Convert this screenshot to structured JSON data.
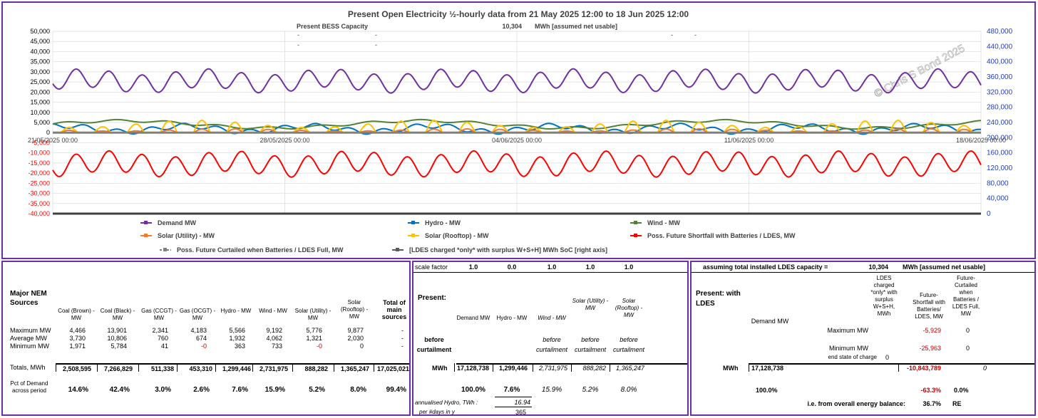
{
  "chart_data": {
    "type": "line",
    "title": "Present Open Electricity ½-hourly data from 21 May 2025 12:00  to 18 Jun 2025 12:00",
    "annotations": {
      "bess_label": "Present BESS Capacity",
      "bess_value": "10,304",
      "bess_unit": "MWh [assumed net usable]",
      "dash": "-",
      "watermark": "© Chris S Bond  2025"
    },
    "left_axis": {
      "min": -40000,
      "max": 50000,
      "step": 5000,
      "ticks": [
        "50,000",
        "45,000",
        "40,000",
        "35,000",
        "30,000",
        "25,000",
        "20,000",
        "15,000",
        "10,000",
        "5,000",
        "0",
        "-5,000",
        "-10,000",
        "-15,000",
        "-20,000",
        "-25,000",
        "-30,000",
        "-35,000",
        "-40,000"
      ]
    },
    "right_axis": {
      "min": 0,
      "max": 480000,
      "step": 40000,
      "ticks": [
        "480,000",
        "440,000",
        "400,000",
        "360,000",
        "320,000",
        "280,000",
        "240,000",
        "200,000",
        "160,000",
        "120,000",
        "80,000",
        "40,000",
        "0"
      ]
    },
    "x_ticks": [
      "21/05/2025 00:00",
      "28/05/2025 00:00",
      "04/06/2025 00:00",
      "11/06/2025 00:00",
      "18/06/2025 00:00"
    ],
    "x_range_days": [
      0,
      28
    ],
    "grid": true,
    "legend_position": "bottom",
    "series": [
      {
        "name": "Demand MW",
        "color": "#7030a0",
        "base": 25500,
        "amplitude": 4500,
        "period_days": 1,
        "phase": 0.55
      },
      {
        "name": "Hydro - MW",
        "color": "#0070c0",
        "base": 1900,
        "amplitude": 1200,
        "period_days": 1,
        "phase": 0.3
      },
      {
        "name": "Wind - MW",
        "color": "#548235",
        "base": 4060,
        "amplitude": 1800,
        "period_days": 9,
        "phase": 0.1
      },
      {
        "name": "Solar (Utility) - MW",
        "color": "#ed7d31",
        "base": 1320,
        "amplitude": 1800,
        "period_days": 1,
        "phase": 0.0
      },
      {
        "name": "Solar (Rooftop) - MW",
        "color": "#ffc000",
        "base": 2030,
        "amplitude": 6000,
        "period_days": 1,
        "phase": 0.0
      },
      {
        "name": "Poss. Future Shortfall with Batteries / LDES, MW",
        "color": "#ff0000",
        "base": -15500,
        "amplitude": 5000,
        "period_days": 1,
        "phase": 0.55
      },
      {
        "name": "Poss. Future Curtailed when Batteries / LDES Full, MW",
        "color": "#808080",
        "base": 0,
        "amplitude": 0
      },
      {
        "name": "[LDES charged *only* with surplus W+S+H]  MWh SoC [right axis]",
        "color": "#595959",
        "base": 0,
        "amplitude": 0
      }
    ]
  },
  "sources_table": {
    "title": "Major NEM Sources",
    "columns": [
      "Coal (Brown) - MW",
      "Coal (Black) - MW",
      "Gas (CCGT) - MW",
      "Gas (OCGT) - MW",
      "Hydro - MW",
      "Wind - MW",
      "Solar (Utility) - MW",
      "Solar (Rooftop) - MW",
      "Total of main sources"
    ],
    "rows": [
      {
        "label": "Maximum MW",
        "values": [
          "4,466",
          "13,901",
          "2,341",
          "4,183",
          "5,566",
          "9,192",
          "5,776",
          "9,877",
          "-"
        ]
      },
      {
        "label": "Average MW",
        "values": [
          "3,730",
          "10,806",
          "760",
          "674",
          "1,932",
          "4,062",
          "1,321",
          "2,030",
          "-"
        ]
      },
      {
        "label": "Minimum MW",
        "values": [
          "1,971",
          "5,784",
          "41",
          "-0",
          "363",
          "733",
          "-0",
          "0",
          "-"
        ]
      }
    ],
    "totals_label": "Totals, MWh",
    "totals": [
      "2,508,595",
      "7,266,829",
      "511,338",
      "453,310",
      "1,299,446",
      "2,731,975",
      "888,282",
      "1,365,247",
      "17,025,021"
    ],
    "pct_label": "Pct of Demand across period",
    "pct": [
      "14.6%",
      "42.4%",
      "3.0%",
      "2.6%",
      "7.6%",
      "15.9%",
      "5.2%",
      "8.0%",
      "99.4%"
    ]
  },
  "present_table": {
    "scale_label": "scale factor",
    "scale": [
      "1.0",
      "0.0",
      "1.0",
      "1.0",
      "1.0"
    ],
    "title": "Present:",
    "columns": [
      "Demand MW",
      "Hydro - MW",
      "Wind - MW",
      "Solar (Utility) - MW",
      "Solar (Rooftop) - MW"
    ],
    "before_curtailment_label": "before curtailment",
    "before_curtailment": "before curtailment",
    "mwh_label": "MWh",
    "mwh": [
      "17,128,738",
      "1,299,446",
      "2,731,975",
      "888,282",
      "1,365,247"
    ],
    "pct": [
      "100.0%",
      "7.6%",
      "15.9%",
      "5.2%",
      "8.0%"
    ],
    "annualised_label": "annualised Hydro, TWh :",
    "annualised": "16.94",
    "per_days_label": "per #days in y",
    "per_days": "365"
  },
  "ldes_table": {
    "assume_label": "assuming total installed LDES capacity =",
    "capacity": "10,304",
    "capacity_unit": "MWh [assumed net usable]",
    "title": "Present: with LDES",
    "columns": [
      "Demand MW",
      "LDES charged *only* with surplus W+S+H, MWh",
      "Future-Shortfall with Batteries/ LDES, MW",
      "Future-Curtailed when Batteries / LDES Full, MW"
    ],
    "max_label": "Maximum MW",
    "max": [
      "-5,929",
      "0"
    ],
    "min_label": "Minimum MW",
    "min": [
      "-25,963",
      "0"
    ],
    "end_state_label": "end state of charge",
    "end_state": "0",
    "mwh_label": "MWh",
    "mwh_demand": "17,128,738",
    "mwh_shortfall": "-10,843,789",
    "mwh_curtailed": "0",
    "pct_demand": "100.0%",
    "pct_shortfall": "-63.3%",
    "pct_curtailed": "0.0%",
    "balance_label": "i.e. from overall energy balance:",
    "balance_value": "36.7%",
    "balance_suffix": "RE"
  }
}
